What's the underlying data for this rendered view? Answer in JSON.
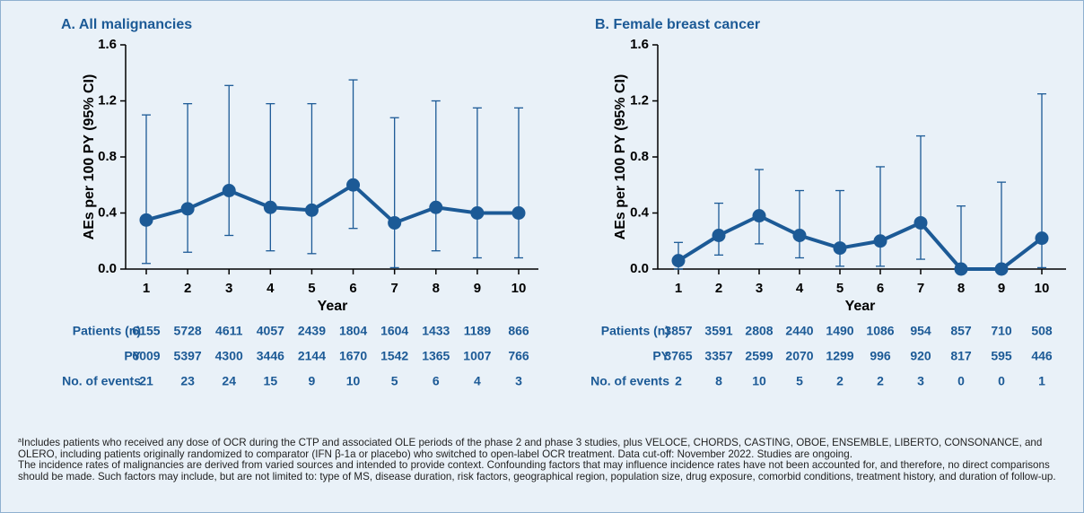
{
  "chart_data": [
    {
      "type": "line",
      "title": "A. All malignancies",
      "ylabel": "AEs per 100 PY (95% CI)",
      "xlabel": "Year",
      "categories": [
        "1",
        "2",
        "3",
        "4",
        "5",
        "6",
        "7",
        "8",
        "9",
        "10"
      ],
      "ylim": [
        0,
        1.6
      ],
      "yticks": [
        {
          "value": 0,
          "label": "0.0"
        },
        {
          "value": 0.4,
          "label": "0.4"
        },
        {
          "value": 0.8,
          "label": "0.8"
        },
        {
          "value": 1.2,
          "label": "1.2"
        },
        {
          "value": 1.6,
          "label": "1.6"
        }
      ],
      "series": [
        {
          "color": "#1c5a96",
          "values": [
            0.35,
            0.43,
            0.56,
            0.44,
            0.42,
            0.6,
            0.33,
            0.44,
            0.4,
            0.4
          ],
          "lower": [
            0.04,
            0.12,
            0.24,
            0.13,
            0.11,
            0.29,
            0.01,
            0.13,
            0.08,
            0.08
          ],
          "upper": [
            1.1,
            1.18,
            1.31,
            1.18,
            1.18,
            1.35,
            1.08,
            1.2,
            1.15,
            1.15
          ]
        }
      ],
      "table": [
        {
          "label": "Patients (n)",
          "values": [
            6155,
            5728,
            4611,
            4057,
            2439,
            1804,
            1604,
            1433,
            1189,
            866
          ]
        },
        {
          "label": "PY",
          "values": [
            6009,
            5397,
            4300,
            3446,
            2144,
            1670,
            1542,
            1365,
            1007,
            766
          ]
        },
        {
          "label": "No. of events",
          "values": [
            21,
            23,
            24,
            15,
            9,
            10,
            5,
            6,
            4,
            3
          ]
        }
      ]
    },
    {
      "type": "line",
      "title": "B. Female breast cancer",
      "ylabel": "AEs per 100 PY (95% CI)",
      "xlabel": "Year",
      "categories": [
        "1",
        "2",
        "3",
        "4",
        "5",
        "6",
        "7",
        "8",
        "9",
        "10"
      ],
      "ylim": [
        0,
        1.6
      ],
      "yticks": [
        {
          "value": 0,
          "label": "0.0"
        },
        {
          "value": 0.4,
          "label": "0.4"
        },
        {
          "value": 0.8,
          "label": "0.8"
        },
        {
          "value": 1.2,
          "label": "1.2"
        },
        {
          "value": 1.6,
          "label": "1.6"
        }
      ],
      "series": [
        {
          "color": "#1c5a96",
          "values": [
            0.06,
            0.24,
            0.38,
            0.24,
            0.15,
            0.2,
            0.33,
            0,
            0,
            0.22
          ],
          "lower": [
            0,
            0.1,
            0.18,
            0.08,
            0.02,
            0.02,
            0.07,
            0,
            0,
            0.01
          ],
          "upper": [
            0.19,
            0.47,
            0.71,
            0.56,
            0.56,
            0.73,
            0.95,
            0.45,
            0.62,
            1.25
          ]
        }
      ],
      "table": [
        {
          "label": "Patients (n)",
          "values": [
            3857,
            3591,
            2808,
            2440,
            1490,
            1086,
            954,
            857,
            710,
            508
          ]
        },
        {
          "label": "PY",
          "values": [
            3765,
            3357,
            2599,
            2070,
            1299,
            996,
            920,
            817,
            595,
            446
          ]
        },
        {
          "label": "No. of events",
          "values": [
            2,
            8,
            10,
            5,
            2,
            2,
            3,
            0,
            0,
            1
          ]
        }
      ]
    }
  ],
  "footnote_marker": "a",
  "footnotes": [
    "Includes patients who received any dose of OCR during the CTP and associated OLE periods of the phase 2 and phase 3 studies, plus VELOCE, CHORDS, CASTING, OBOE, ENSEMBLE, LIBERTO, CONSONANCE, and OLERO, including patients originally randomized to comparator (IFN β-1a or placebo) who switched to open-label OCR treatment. Data cut-off: November 2022. Studies are ongoing.",
    "The incidence rates of malignancies are derived from varied sources and intended to provide context. Confounding factors that may influence incidence rates have not been accounted for, and therefore, no direct comparisons should be made. Such factors may include, but are not limited to: type of MS, disease duration, risk factors, geographical region, population size, drug exposure, comorbid conditions, treatment history, and duration of follow-up."
  ]
}
